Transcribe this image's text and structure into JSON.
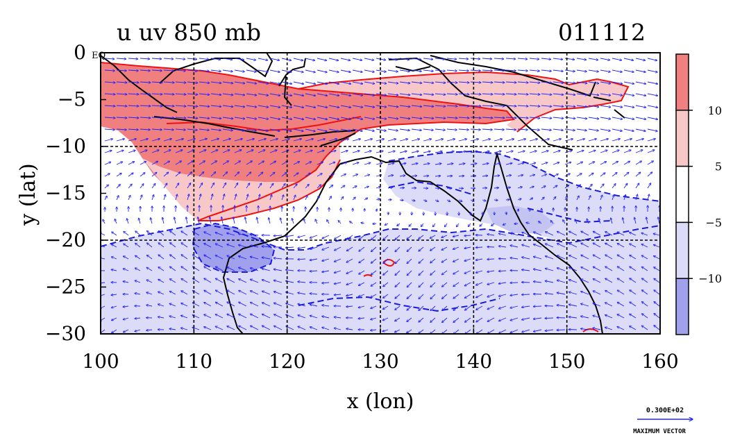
{
  "chart_data": {
    "type": "heatmap",
    "title": "u uv 850 mb",
    "date_label": "011112",
    "xlabel": "x (lon)",
    "ylabel": "y (lat)",
    "xlim": [
      100,
      160
    ],
    "ylim": [
      -30,
      0
    ],
    "x_ticks": [
      "100",
      "110",
      "120",
      "130",
      "140",
      "150",
      "160"
    ],
    "y_ticks": [
      "0",
      "−5",
      "−10",
      "−15",
      "−20",
      "−25",
      "−30"
    ],
    "eq_label": "EQ",
    "grid": true,
    "colorbar": {
      "labels": [
        "10",
        "5",
        "−5",
        "−10"
      ],
      "colors": [
        "#f08080",
        "#f8c8c8",
        "#ffffff",
        "#dcdcf8",
        "#a0a0ec"
      ],
      "bounds": [
        -10,
        -5,
        5,
        10
      ]
    },
    "vector_legend": {
      "value": "0.300E+02",
      "label": "MAXIMUM VECTOR"
    }
  }
}
